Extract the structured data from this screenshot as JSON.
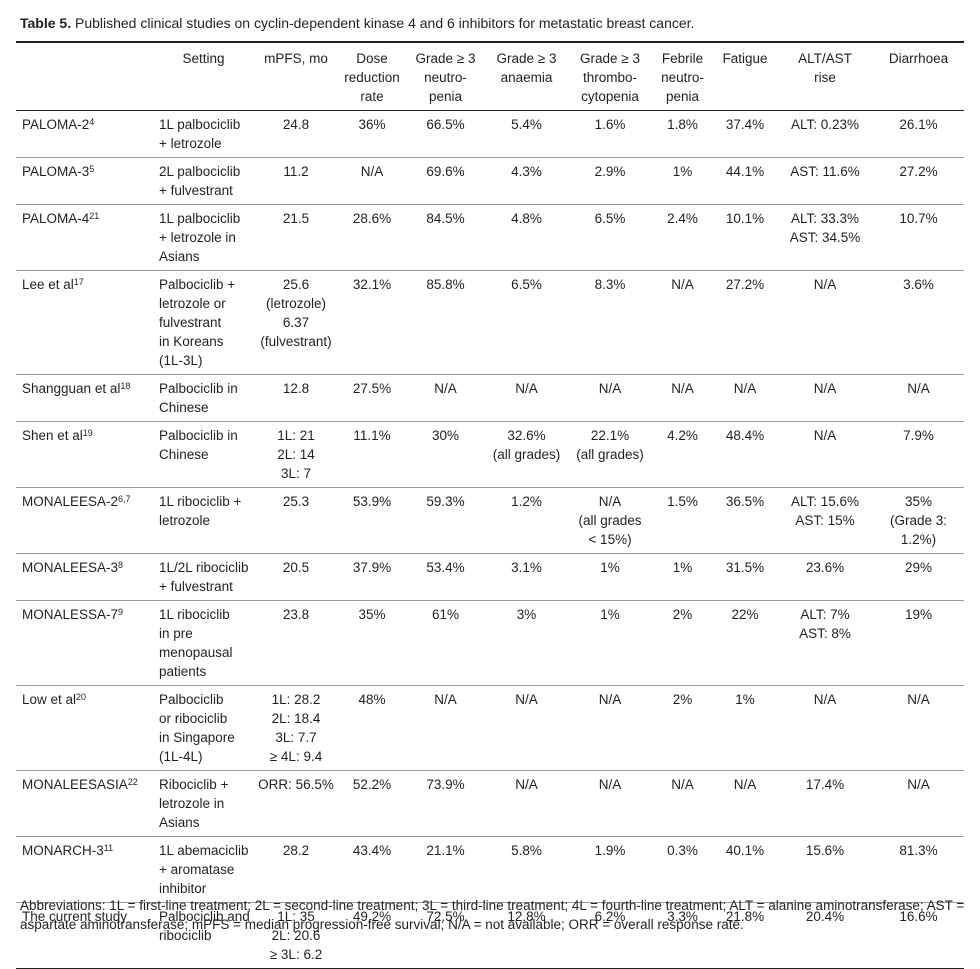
{
  "caption": {
    "label": "Table 5.",
    "text": " Published clinical studies on cyclin-dependent kinase 4 and 6 inhibitors for metastatic breast cancer."
  },
  "columns": [
    [
      "Setting"
    ],
    [
      "mPFS, mo"
    ],
    [
      "Dose",
      "reduction",
      "rate"
    ],
    [
      "Grade ≥ 3",
      "neutro-",
      "penia"
    ],
    [
      "Grade ≥ 3",
      "anaemia"
    ],
    [
      "Grade ≥ 3",
      "thrombo-",
      "cytopenia"
    ],
    [
      "Febrile",
      "neutro-",
      "penia"
    ],
    [
      "Fatigue"
    ],
    [
      "ALT/AST",
      "rise"
    ],
    [
      "Diarrhoea"
    ]
  ],
  "rows": [
    {
      "study": "PALOMA-2",
      "ref": "4",
      "cells": [
        [
          "1L palbociclib",
          "+ letrozole"
        ],
        [
          "24.8"
        ],
        [
          "36%"
        ],
        [
          "66.5%"
        ],
        [
          "5.4%"
        ],
        [
          "1.6%"
        ],
        [
          "1.8%"
        ],
        [
          "37.4%"
        ],
        [
          "ALT: 0.23%"
        ],
        [
          "26.1%"
        ]
      ]
    },
    {
      "study": "PALOMA-3",
      "ref": "5",
      "cells": [
        [
          "2L palbociclib",
          "+ fulvestrant"
        ],
        [
          "11.2"
        ],
        [
          "N/A"
        ],
        [
          "69.6%"
        ],
        [
          "4.3%"
        ],
        [
          "2.9%"
        ],
        [
          "1%"
        ],
        [
          "44.1%"
        ],
        [
          "AST: 11.6%"
        ],
        [
          "27.2%"
        ]
      ]
    },
    {
      "study": "PALOMA-4",
      "ref": "21",
      "cells": [
        [
          "1L palbociclib",
          "+ letrozole in",
          "Asians"
        ],
        [
          "21.5"
        ],
        [
          "28.6%"
        ],
        [
          "84.5%"
        ],
        [
          "4.8%"
        ],
        [
          "6.5%"
        ],
        [
          "2.4%"
        ],
        [
          "10.1%"
        ],
        [
          "ALT: 33.3%",
          "AST: 34.5%"
        ],
        [
          "10.7%"
        ]
      ]
    },
    {
      "study": "Lee et al",
      "ref": "17",
      "cells": [
        [
          "Palbociclib +",
          "letrozole or",
          "fulvestrant",
          "in Koreans",
          "(1L-3L)"
        ],
        [
          "25.6",
          "(letrozole)",
          "6.37",
          "(fulvestrant)"
        ],
        [
          "32.1%"
        ],
        [
          "85.8%"
        ],
        [
          "6.5%"
        ],
        [
          "8.3%"
        ],
        [
          "N/A"
        ],
        [
          "27.2%"
        ],
        [
          "N/A"
        ],
        [
          "3.6%"
        ]
      ]
    },
    {
      "study": "Shangguan et al",
      "ref": "18",
      "cells": [
        [
          "Palbociclib in",
          "Chinese"
        ],
        [
          "12.8"
        ],
        [
          "27.5%"
        ],
        [
          "N/A"
        ],
        [
          "N/A"
        ],
        [
          "N/A"
        ],
        [
          "N/A"
        ],
        [
          "N/A"
        ],
        [
          "N/A"
        ],
        [
          "N/A"
        ]
      ]
    },
    {
      "study": "Shen et al",
      "ref": "19",
      "cells": [
        [
          "Palbociclib in",
          "Chinese"
        ],
        [
          "1L: 21",
          "2L: 14",
          "3L: 7"
        ],
        [
          "11.1%"
        ],
        [
          "30%"
        ],
        [
          "32.6%",
          "(all grades)"
        ],
        [
          "22.1%",
          "(all grades)"
        ],
        [
          "4.2%"
        ],
        [
          "48.4%"
        ],
        [
          "N/A"
        ],
        [
          "7.9%"
        ]
      ]
    },
    {
      "study": "MONALEESA-2",
      "ref": "6,7",
      "cells": [
        [
          "1L ribociclib +",
          "letrozole"
        ],
        [
          "25.3"
        ],
        [
          "53.9%"
        ],
        [
          "59.3%"
        ],
        [
          "1.2%"
        ],
        [
          "N/A",
          "(all grades",
          "< 15%)"
        ],
        [
          "1.5%"
        ],
        [
          "36.5%"
        ],
        [
          "ALT: 15.6%",
          "AST: 15%"
        ],
        [
          "35%",
          "(Grade 3:",
          "1.2%)"
        ]
      ]
    },
    {
      "study": "MONALEESA-3",
      "ref": "8",
      "cells": [
        [
          "1L/2L ribociclib",
          "+ fulvestrant"
        ],
        [
          "20.5"
        ],
        [
          "37.9%"
        ],
        [
          "53.4%"
        ],
        [
          "3.1%"
        ],
        [
          "1%"
        ],
        [
          "1%"
        ],
        [
          "31.5%"
        ],
        [
          "23.6%"
        ],
        [
          "29%"
        ]
      ]
    },
    {
      "study": "MONALESSA-7",
      "ref": "9",
      "cells": [
        [
          "1L ribociclib",
          "in pre",
          "menopausal",
          "patients"
        ],
        [
          "23.8"
        ],
        [
          "35%"
        ],
        [
          "61%"
        ],
        [
          "3%"
        ],
        [
          "1%"
        ],
        [
          "2%"
        ],
        [
          "22%"
        ],
        [
          "ALT: 7%",
          "AST: 8%"
        ],
        [
          "19%"
        ]
      ]
    },
    {
      "study": "Low et al",
      "ref": "20",
      "cells": [
        [
          "Palbociclib",
          "or ribociclib",
          "in Singapore",
          "(1L-4L)"
        ],
        [
          "1L: 28.2",
          "2L: 18.4",
          "3L: 7.7",
          "≥ 4L: 9.4"
        ],
        [
          "48%"
        ],
        [
          "N/A"
        ],
        [
          "N/A"
        ],
        [
          "N/A"
        ],
        [
          "2%"
        ],
        [
          "1%"
        ],
        [
          "N/A"
        ],
        [
          "N/A"
        ]
      ]
    },
    {
      "study": "MONALEESASIA",
      "ref": "22",
      "cells": [
        [
          "Ribociclib +",
          "letrozole in",
          "Asians"
        ],
        [
          "ORR: 56.5%"
        ],
        [
          "52.2%"
        ],
        [
          "73.9%"
        ],
        [
          "N/A"
        ],
        [
          "N/A"
        ],
        [
          "N/A"
        ],
        [
          "N/A"
        ],
        [
          "17.4%"
        ],
        [
          "N/A"
        ]
      ]
    },
    {
      "study": "MONARCH-3",
      "ref": "11",
      "cells": [
        [
          "1L abemaciclib",
          "+ aromatase",
          "inhibitor"
        ],
        [
          "28.2"
        ],
        [
          "43.4%"
        ],
        [
          "21.1%"
        ],
        [
          "5.8%"
        ],
        [
          "1.9%"
        ],
        [
          "0.3%"
        ],
        [
          "40.1%"
        ],
        [
          "15.6%"
        ],
        [
          "81.3%"
        ]
      ]
    },
    {
      "study": "The current study",
      "ref": "",
      "cells": [
        [
          "Palbociclib and",
          "ribociclib"
        ],
        [
          "1L: 35",
          "2L: 20.6",
          "≥ 3L: 6.2"
        ],
        [
          "49.2%"
        ],
        [
          "72.5%"
        ],
        [
          "12.8%"
        ],
        [
          "6.2%"
        ],
        [
          "3.3%"
        ],
        [
          "21.8%"
        ],
        [
          "20.4%"
        ],
        [
          "16.6%"
        ]
      ]
    }
  ],
  "footnote": "Abbreviations: 1L = first-line treatment; 2L = second-line treatment; 3L = third-line treatment; 4L = fourth-line treatment; ALT = alanine aminotransferase; AST = aspartate aminotransferase; mPFS = median progression-free survival; N/A = not available; ORR = overall response rate."
}
